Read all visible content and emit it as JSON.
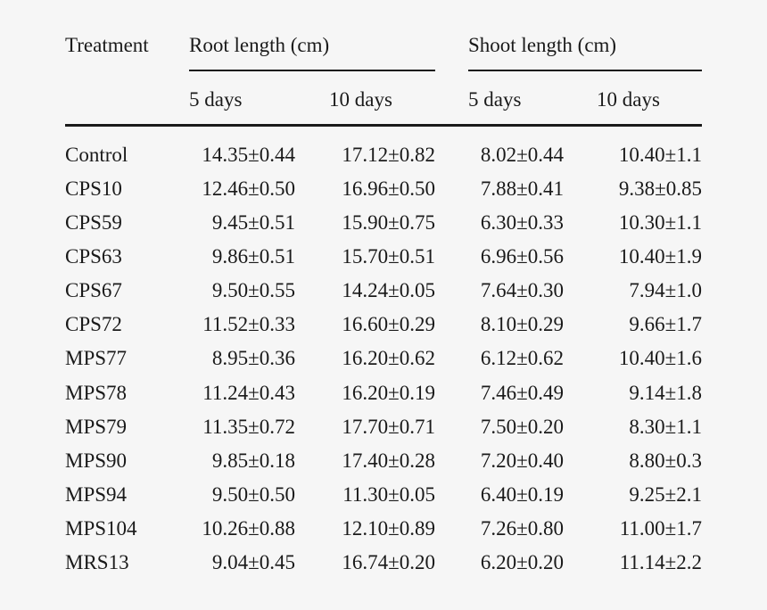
{
  "table": {
    "header": {
      "treatment": "Treatment",
      "root_group": "Root length (cm)",
      "shoot_group": "Shoot length (cm)",
      "subheaders": [
        "5 days",
        "10 days",
        "5 days",
        "10 days"
      ]
    },
    "rows": [
      {
        "treatment": "Control",
        "root5": "14.35±0.44",
        "root10": "17.12±0.82",
        "shoot5": "8.02±0.44",
        "shoot10": "10.40±1.1"
      },
      {
        "treatment": "CPS10",
        "root5": "12.46±0.50",
        "root10": "16.96±0.50",
        "shoot5": "7.88±0.41",
        "shoot10": "9.38±0.85"
      },
      {
        "treatment": "CPS59",
        "root5": "9.45±0.51",
        "root10": "15.90±0.75",
        "shoot5": "6.30±0.33",
        "shoot10": "10.30±1.1"
      },
      {
        "treatment": "CPS63",
        "root5": "9.86±0.51",
        "root10": "15.70±0.51",
        "shoot5": "6.96±0.56",
        "shoot10": "10.40±1.9"
      },
      {
        "treatment": "CPS67",
        "root5": "9.50±0.55",
        "root10": "14.24±0.05",
        "shoot5": "7.64±0.30",
        "shoot10": "7.94±1.0"
      },
      {
        "treatment": "CPS72",
        "root5": "11.52±0.33",
        "root10": "16.60±0.29",
        "shoot5": "8.10±0.29",
        "shoot10": "9.66±1.7"
      },
      {
        "treatment": "MPS77",
        "root5": "8.95±0.36",
        "root10": "16.20±0.62",
        "shoot5": "6.12±0.62",
        "shoot10": "10.40±1.6"
      },
      {
        "treatment": "MPS78",
        "root5": "11.24±0.43",
        "root10": "16.20±0.19",
        "shoot5": "7.46±0.49",
        "shoot10": "9.14±1.8"
      },
      {
        "treatment": "MPS79",
        "root5": "11.35±0.72",
        "root10": "17.70±0.71",
        "shoot5": "7.50±0.20",
        "shoot10": "8.30±1.1"
      },
      {
        "treatment": "MPS90",
        "root5": "9.85±0.18",
        "root10": "17.40±0.28",
        "shoot5": "7.20±0.40",
        "shoot10": "8.80±0.3"
      },
      {
        "treatment": "MPS94",
        "root5": "9.50±0.50",
        "root10": "11.30±0.05",
        "shoot5": "6.40±0.19",
        "shoot10": "9.25±2.1"
      },
      {
        "treatment": "MPS104",
        "root5": "10.26±0.88",
        "root10": "12.10±0.89",
        "shoot5": "7.26±0.80",
        "shoot10": "11.00±1.7"
      },
      {
        "treatment": "MRS13",
        "root5": "9.04±0.45",
        "root10": "16.74±0.20",
        "shoot5": "6.20±0.20",
        "shoot10": "11.14±2.2"
      }
    ]
  }
}
